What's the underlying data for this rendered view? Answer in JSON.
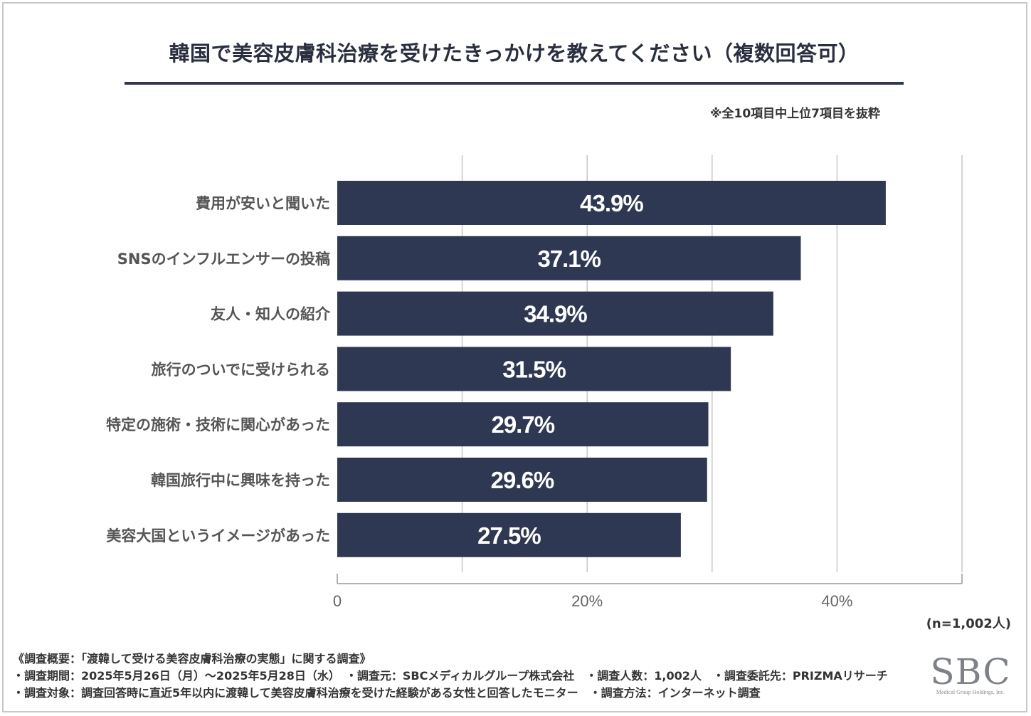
{
  "title": "韓国で美容皮膚科治療を受けたきっかけを教えてください（複数回答可）",
  "note": "※全10項目中上位7項目を抜粋",
  "sample": "(n=1,002人)",
  "survey": {
    "heading": "《調査概要：「渡韓して受ける美容皮膚科治療の実態」に関する調査》",
    "line1": "・調査期間：2025年5月26日（月）〜2025年5月28日（水）　・調査元：SBCメディカルグループ株式会社　・調査人数：1,002人　・調査委託先：PRIZMAリサーチ",
    "line2": "・調査対象：調査回答時に直近5年以内に渡韓して美容皮膚科治療を受けた経験がある女性と回答したモニター　・調査方法：インターネット調査"
  },
  "logo": {
    "main": "SBC",
    "sub": "Medical Group Holdings, Inc."
  },
  "colors": {
    "bar": "#2f3852",
    "bar_label": "#ffffff",
    "grid": "#c8c8c8",
    "axis": "#999999",
    "category_label": "#555555",
    "tick_label": "#666666"
  },
  "chart_data": {
    "type": "bar",
    "orientation": "horizontal",
    "categories": [
      "費用が安いと聞いた",
      "SNSのインフルエンサーの投稿",
      "友人・知人の紹介",
      "旅行のついでに受けられる",
      "特定の施術・技術に関心があった",
      "韓国旅行中に興味を持った",
      "美容大国というイメージがあった"
    ],
    "values": [
      43.9,
      37.1,
      34.9,
      31.5,
      29.7,
      29.6,
      27.5
    ],
    "value_labels": [
      "43.9%",
      "37.1%",
      "34.9%",
      "31.5%",
      "29.7%",
      "29.6%",
      "27.5%"
    ],
    "xlim": [
      0,
      50
    ],
    "grid_step": 10,
    "ticks": [
      {
        "value": 0,
        "label": "0"
      },
      {
        "value": 20,
        "label": "20%"
      },
      {
        "value": 40,
        "label": "40%"
      }
    ],
    "unit": "%"
  }
}
